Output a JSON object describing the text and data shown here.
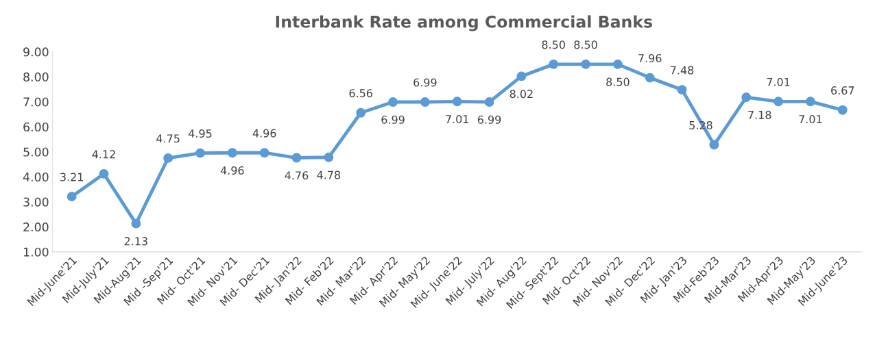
{
  "chart_data": {
    "type": "line",
    "title": "Interbank Rate among Commercial Banks",
    "categories": [
      "Mid-June'21",
      "Mid-July'21",
      "Mid-Aug'21",
      "Mid -Sep'21",
      "Mid- Oct'21",
      "Mid- Nov'21",
      "Mid- Dec'21",
      "Mid- Jan'22",
      "Mid- Feb'22",
      "Mid- Mar'22",
      "Mid- Apr'22",
      "Mid- May'22",
      "Mid- June'22",
      "Mid- July'22",
      "Mid- Aug'22",
      "Mid- Sept'22",
      "Mid- Oct'22",
      "Mid- Nov'22",
      "Mid- Dec'22",
      "Mid- Jan'23",
      "Mid-Feb'23",
      "Mid-Mar'23",
      "Mid-Apr'23",
      "Mid-May'23",
      "Mid-June'23"
    ],
    "series": [
      {
        "color": "#5b9bd5",
        "values": [
          3.21,
          4.12,
          2.13,
          4.75,
          4.95,
          4.96,
          4.96,
          4.76,
          4.78,
          6.56,
          6.99,
          6.99,
          7.01,
          6.99,
          8.02,
          8.5,
          8.5,
          8.5,
          7.96,
          7.48,
          5.28,
          7.18,
          7.01,
          7.01,
          6.67
        ],
        "value_labels": [
          "3.21",
          "4.12",
          "2.13",
          "4.75",
          "4.95",
          "4.96",
          "4.96",
          "4.76",
          "4.78",
          "6.56",
          "6.99",
          "6.99",
          "7.01",
          "6.99",
          "8.02",
          "8.50",
          "8.50",
          "8.50",
          "7.96",
          "7.48",
          "5.28",
          "7.18",
          "7.01",
          "7.01",
          "6.67"
        ]
      }
    ],
    "ylim": [
      1,
      9
    ],
    "yticks": [
      {
        "value": 1,
        "label": "1.00"
      },
      {
        "value": 2,
        "label": "2.00"
      },
      {
        "value": 3,
        "label": "3.00"
      },
      {
        "value": 4,
        "label": "4.00"
      },
      {
        "value": 5,
        "label": "5.00"
      },
      {
        "value": 6,
        "label": "6.00"
      },
      {
        "value": 7,
        "label": "7.00"
      },
      {
        "value": 8,
        "label": "8.00"
      },
      {
        "value": 9,
        "label": "9.00"
      }
    ],
    "marker": "circle",
    "line_style": "solid",
    "grid": false,
    "legend": false
  }
}
